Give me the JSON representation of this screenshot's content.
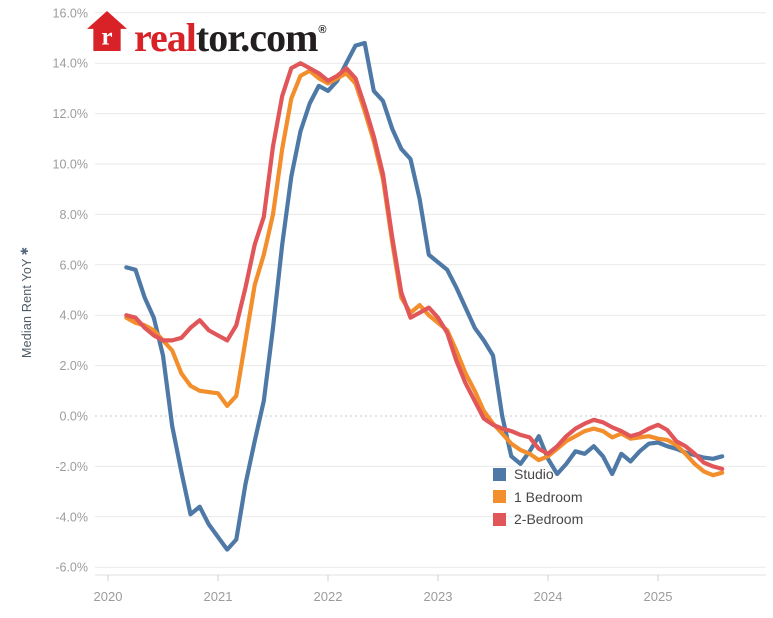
{
  "logo": {
    "house_letter": "r",
    "brand_real": "real",
    "brand_rest": "tor.com",
    "registered_mark": "®",
    "brand_red": "#d92228",
    "brand_black": "#231f20"
  },
  "axes": {
    "y_axis_title": "Median Rent YoY",
    "y_axis_title_marker": "✱"
  },
  "chart_data": {
    "type": "line",
    "title": "",
    "ylabel": "Median Rent YoY",
    "x_start": "2020-03",
    "x_interval": "monthly",
    "x_tick_labels": [
      "2020",
      "2021",
      "2022",
      "2023",
      "2024",
      "2025"
    ],
    "ytick_labels": [
      "16.0%",
      "14.0%",
      "12.0%",
      "10.0%",
      "8.0%",
      "6.0%",
      "4.0%",
      "2.0%",
      "0.0%",
      "-2.0%",
      "-4.0%",
      "-6.0%"
    ],
    "ylim": [
      -6,
      16
    ],
    "ytick_step": 2,
    "grid": "horizontal",
    "zero_line_style": "dotted",
    "legend_position": "inside-bottom-right",
    "series": [
      {
        "name": "Studio",
        "color": "#4e79a7",
        "values": [
          5.9,
          5.8,
          4.7,
          3.9,
          2.4,
          -0.4,
          -2.2,
          -3.9,
          -3.6,
          -4.3,
          -4.8,
          -5.3,
          -4.9,
          -2.7,
          -1.0,
          0.6,
          3.5,
          6.8,
          9.5,
          11.3,
          12.4,
          13.1,
          12.9,
          13.3,
          14.0,
          14.7,
          14.8,
          12.9,
          12.5,
          11.4,
          10.6,
          10.2,
          8.6,
          6.4,
          6.1,
          5.8,
          5.1,
          4.3,
          3.5,
          3.0,
          2.4,
          0.0,
          -1.6,
          -1.9,
          -1.4,
          -0.8,
          -1.7,
          -2.3,
          -1.9,
          -1.4,
          -1.5,
          -1.2,
          -1.6,
          -2.3,
          -1.5,
          -1.8,
          -1.4,
          -1.1,
          -1.05,
          -1.2,
          -1.3,
          -1.45,
          -1.55,
          -1.65,
          -1.7,
          -1.6
        ]
      },
      {
        "name": "1 Bedroom",
        "color": "#f28e2b",
        "values": [
          3.9,
          3.7,
          3.6,
          3.4,
          3.0,
          2.6,
          1.7,
          1.2,
          1.0,
          0.95,
          0.9,
          0.4,
          0.8,
          3.0,
          5.2,
          6.4,
          8.0,
          10.6,
          12.6,
          13.5,
          13.7,
          13.4,
          13.2,
          13.4,
          13.6,
          13.2,
          12.1,
          10.9,
          9.4,
          6.9,
          4.7,
          4.1,
          4.4,
          4.0,
          3.7,
          3.4,
          2.6,
          1.7,
          1.0,
          0.2,
          -0.3,
          -0.7,
          -1.1,
          -1.35,
          -1.5,
          -1.75,
          -1.6,
          -1.3,
          -1.0,
          -0.8,
          -0.6,
          -0.5,
          -0.6,
          -0.85,
          -0.7,
          -0.9,
          -0.85,
          -0.8,
          -0.9,
          -0.95,
          -1.15,
          -1.5,
          -1.9,
          -2.2,
          -2.35,
          -2.25
        ]
      },
      {
        "name": "2-Bedroom",
        "color": "#e15759",
        "values": [
          4.0,
          3.9,
          3.5,
          3.2,
          3.0,
          3.0,
          3.1,
          3.5,
          3.8,
          3.4,
          3.2,
          3.0,
          3.6,
          5.1,
          6.8,
          7.9,
          10.7,
          12.7,
          13.8,
          14.0,
          13.8,
          13.6,
          13.3,
          13.5,
          13.8,
          13.4,
          12.3,
          11.1,
          9.6,
          7.1,
          4.9,
          3.9,
          4.1,
          4.3,
          3.9,
          3.3,
          2.2,
          1.3,
          0.6,
          -0.1,
          -0.35,
          -0.5,
          -0.6,
          -0.75,
          -0.85,
          -1.3,
          -1.5,
          -1.2,
          -0.8,
          -0.5,
          -0.3,
          -0.15,
          -0.25,
          -0.45,
          -0.6,
          -0.8,
          -0.7,
          -0.5,
          -0.35,
          -0.55,
          -1.0,
          -1.2,
          -1.5,
          -1.85,
          -2.0,
          -2.1
        ]
      }
    ]
  }
}
